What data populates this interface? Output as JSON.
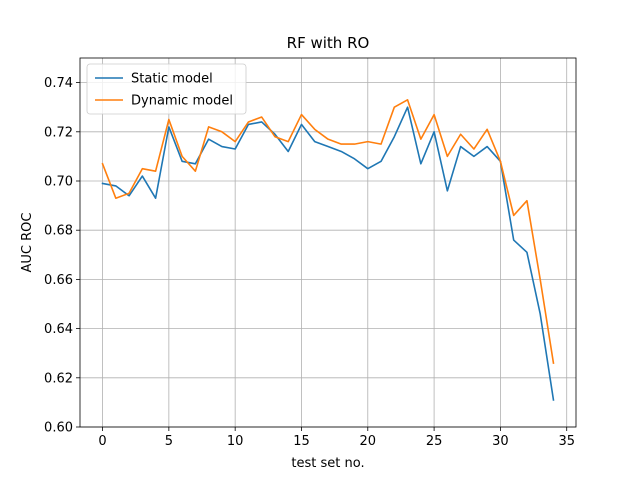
{
  "chart_data": {
    "type": "line",
    "title": "RF with RO",
    "xlabel": "test set no.",
    "ylabel": "AUC ROC",
    "xlim": [
      -1.7,
      35.7
    ],
    "ylim": [
      0.6,
      0.75
    ],
    "xticks": [
      0,
      5,
      10,
      15,
      20,
      25,
      30,
      35
    ],
    "yticks": [
      0.6,
      0.62,
      0.64,
      0.66,
      0.68,
      0.7,
      0.72,
      0.74
    ],
    "xtick_labels": [
      "0",
      "5",
      "10",
      "15",
      "20",
      "25",
      "30",
      "35"
    ],
    "ytick_labels": [
      "0.60",
      "0.62",
      "0.64",
      "0.66",
      "0.68",
      "0.70",
      "0.72",
      "0.74"
    ],
    "grid": true,
    "legend_position": "upper-left",
    "x": [
      0,
      1,
      2,
      3,
      4,
      5,
      6,
      7,
      8,
      9,
      10,
      11,
      12,
      13,
      14,
      15,
      16,
      17,
      18,
      19,
      20,
      21,
      22,
      23,
      24,
      25,
      26,
      27,
      28,
      29,
      30,
      31,
      32,
      33,
      34
    ],
    "series": [
      {
        "name": "Static model",
        "color": "#1f77b4",
        "values": [
          0.699,
          0.698,
          0.694,
          0.702,
          0.693,
          0.722,
          0.708,
          0.707,
          0.717,
          0.714,
          0.713,
          0.723,
          0.724,
          0.719,
          0.712,
          0.723,
          0.716,
          0.714,
          0.712,
          0.709,
          0.705,
          0.708,
          0.718,
          0.73,
          0.707,
          0.72,
          0.696,
          0.714,
          0.71,
          0.714,
          0.708,
          0.676,
          0.671,
          0.646,
          0.611
        ]
      },
      {
        "name": "Dynamic model",
        "color": "#ff7f0e",
        "values": [
          0.707,
          0.693,
          0.695,
          0.705,
          0.704,
          0.725,
          0.71,
          0.704,
          0.722,
          0.72,
          0.716,
          0.724,
          0.726,
          0.718,
          0.716,
          0.727,
          0.721,
          0.717,
          0.715,
          0.715,
          0.716,
          0.715,
          0.73,
          0.733,
          0.717,
          0.727,
          0.71,
          0.719,
          0.713,
          0.721,
          0.708,
          0.686,
          0.692,
          0.66,
          0.626
        ]
      }
    ]
  },
  "style": {
    "grid_color": "#b0b0b0",
    "axis_color": "#000000",
    "background": "#ffffff"
  }
}
